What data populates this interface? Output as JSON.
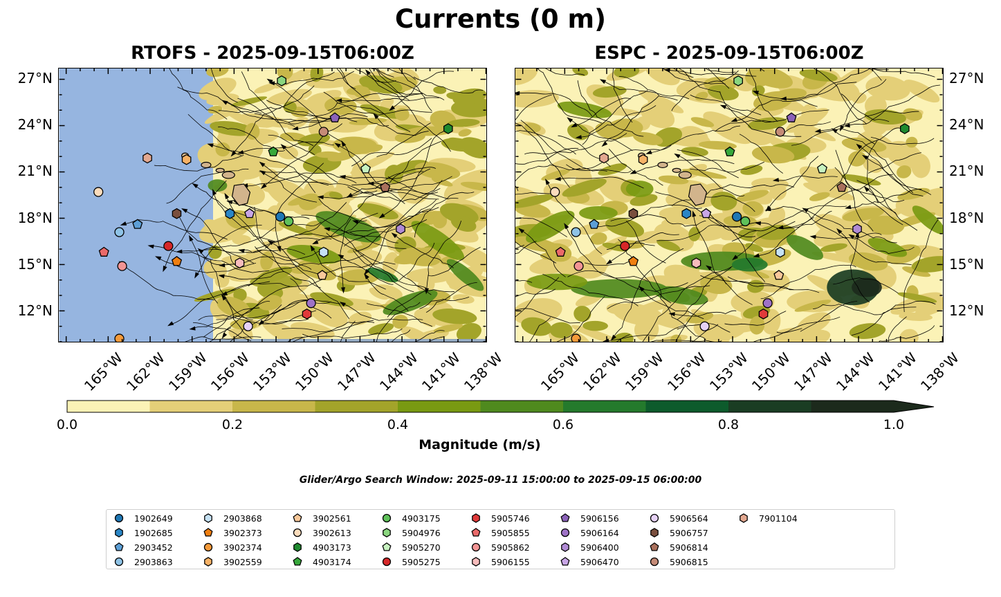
{
  "title": "Currents (0 m)",
  "panels": [
    {
      "title": "RTOFS - 2025-09-15T06:00Z"
    },
    {
      "title": "ESPC - 2025-09-15T06:00Z"
    }
  ],
  "lat_labels": [
    "27°N",
    "24°N",
    "21°N",
    "18°N",
    "15°N",
    "12°N"
  ],
  "lon_labels": [
    "165°W",
    "162°W",
    "159°W",
    "156°W",
    "153°W",
    "150°W",
    "147°W",
    "144°W",
    "141°W",
    "138°W"
  ],
  "colorbar": {
    "label": "Magnitude (m/s)",
    "ticks": [
      "0.0",
      "0.2",
      "0.4",
      "0.6",
      "0.8",
      "1.0"
    ],
    "colors": [
      "#fbf2b6",
      "#e4cf78",
      "#c8b74a",
      "#a3a42a",
      "#799a12",
      "#4f8a1e",
      "#247a2c",
      "#0d5b2c",
      "#1a3d23",
      "#1c2a1c"
    ]
  },
  "search_window": "Glider/Argo Search Window: 2025-09-11 15:00:00 to 2025-09-15 06:00:00",
  "legend": [
    {
      "id": "1902649",
      "color": "#1f77b4",
      "shape": "circle"
    },
    {
      "id": "1902685",
      "color": "#2a86c6",
      "shape": "hexagon"
    },
    {
      "id": "2903452",
      "color": "#5d9fd6",
      "shape": "pentagon"
    },
    {
      "id": "2903863",
      "color": "#8fc3e6",
      "shape": "circle"
    },
    {
      "id": "2903868",
      "color": "#c6e2f5",
      "shape": "hexagon"
    },
    {
      "id": "3902373",
      "color": "#f07f10",
      "shape": "pentagon"
    },
    {
      "id": "3902374",
      "color": "#f59a3a",
      "shape": "circle"
    },
    {
      "id": "3902559",
      "color": "#f7b266",
      "shape": "hexagon"
    },
    {
      "id": "3902561",
      "color": "#f9c89a",
      "shape": "pentagon"
    },
    {
      "id": "3902613",
      "color": "#fcdcbc",
      "shape": "circle"
    },
    {
      "id": "4903173",
      "color": "#1f8a2f",
      "shape": "hexagon"
    },
    {
      "id": "4903174",
      "color": "#37a83b",
      "shape": "pentagon"
    },
    {
      "id": "4903175",
      "color": "#5fc15a",
      "shape": "circle"
    },
    {
      "id": "5904976",
      "color": "#8ad67f",
      "shape": "hexagon"
    },
    {
      "id": "5905270",
      "color": "#c7f2c0",
      "shape": "pentagon"
    },
    {
      "id": "5905275",
      "color": "#d62728",
      "shape": "circle"
    },
    {
      "id": "5905746",
      "color": "#e03a3a",
      "shape": "hexagon"
    },
    {
      "id": "5905855",
      "color": "#ea6a6a",
      "shape": "pentagon"
    },
    {
      "id": "5905862",
      "color": "#f29494",
      "shape": "circle"
    },
    {
      "id": "5906155",
      "color": "#f7bcbc",
      "shape": "hexagon"
    },
    {
      "id": "5906156",
      "color": "#8b62b8",
      "shape": "pentagon"
    },
    {
      "id": "5906164",
      "color": "#9e72c6",
      "shape": "circle"
    },
    {
      "id": "5906400",
      "color": "#b08ad4",
      "shape": "hexagon"
    },
    {
      "id": "5906470",
      "color": "#c8a6e6",
      "shape": "pentagon"
    },
    {
      "id": "5906564",
      "color": "#e6d2f6",
      "shape": "circle"
    },
    {
      "id": "5906757",
      "color": "#7a4f3e",
      "shape": "hexagon"
    },
    {
      "id": "5906814",
      "color": "#a9705c",
      "shape": "pentagon"
    },
    {
      "id": "5906815",
      "color": "#c58b77",
      "shape": "circle"
    },
    {
      "id": "7901104",
      "color": "#e3a890",
      "shape": "hexagon"
    }
  ],
  "map_colors": {
    "land": "#d2b48c",
    "nodata": "#96b5e0"
  },
  "platforms": [
    {
      "id": "1902649",
      "lon": -152.7,
      "lat": 18.1
    },
    {
      "id": "1902685",
      "lon": -156.3,
      "lat": 18.3
    },
    {
      "id": "2903452",
      "lon": -162.9,
      "lat": 17.6
    },
    {
      "id": "2903863",
      "lon": -164.2,
      "lat": 17.1
    },
    {
      "id": "2903868",
      "lon": -149.6,
      "lat": 15.8
    },
    {
      "id": "3902373",
      "lon": -160.1,
      "lat": 15.2
    },
    {
      "id": "3902374",
      "lon": -164.2,
      "lat": 10.2
    },
    {
      "id": "3902559",
      "lon": -159.4,
      "lat": 21.8
    },
    {
      "id": "3902561",
      "lon": -149.7,
      "lat": 14.3
    },
    {
      "id": "3902613",
      "lon": -165.7,
      "lat": 19.7
    },
    {
      "id": "4903173",
      "lon": -140.7,
      "lat": 23.8
    },
    {
      "id": "4903174",
      "lon": -153.2,
      "lat": 22.3
    },
    {
      "id": "4903175",
      "lon": -152.1,
      "lat": 17.8
    },
    {
      "id": "5904976",
      "lon": -152.6,
      "lat": 26.9
    },
    {
      "id": "5905270",
      "lon": -146.6,
      "lat": 21.2
    },
    {
      "id": "5905275",
      "lon": -160.7,
      "lat": 16.2
    },
    {
      "id": "5905746",
      "lon": -150.8,
      "lat": 11.8
    },
    {
      "id": "5905855",
      "lon": -165.3,
      "lat": 15.8
    },
    {
      "id": "5905862",
      "lon": -164.0,
      "lat": 14.9
    },
    {
      "id": "5906155",
      "lon": -155.6,
      "lat": 15.1
    },
    {
      "id": "5906156",
      "lon": -148.8,
      "lat": 24.5
    },
    {
      "id": "5906164",
      "lon": -150.5,
      "lat": 12.5
    },
    {
      "id": "5906400",
      "lon": -144.1,
      "lat": 17.3
    },
    {
      "id": "5906470",
      "lon": -154.9,
      "lat": 18.3
    },
    {
      "id": "5906564",
      "lon": -155.0,
      "lat": 11.0
    },
    {
      "id": "5906757",
      "lon": -160.1,
      "lat": 18.3
    },
    {
      "id": "5906814",
      "lon": -145.2,
      "lat": 20.0
    },
    {
      "id": "5906815",
      "lon": -149.6,
      "lat": 23.6
    },
    {
      "id": "7901104",
      "lon": -162.2,
      "lat": 21.9
    }
  ]
}
